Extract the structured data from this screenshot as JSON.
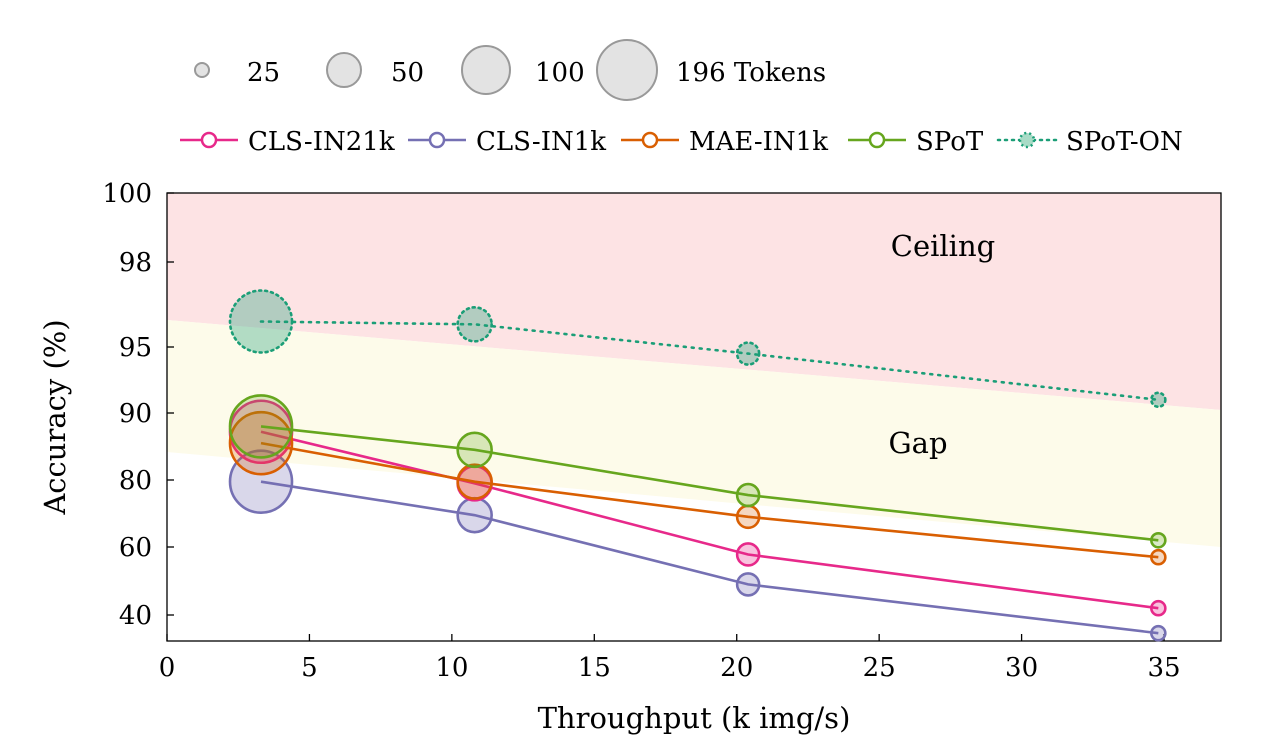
{
  "chart_data": {
    "type": "scatter",
    "xlabel": "Throughput (k img/s)",
    "ylabel": "Accuracy (%)",
    "xlim": [
      0,
      37
    ],
    "x_ticks": [
      0,
      5,
      10,
      15,
      20,
      25,
      30,
      35
    ],
    "y_ticks": [
      40,
      60,
      80,
      90,
      95,
      98,
      100
    ],
    "size_legend": {
      "entries": [
        {
          "tokens": 25,
          "label": "25"
        },
        {
          "tokens": 50,
          "label": "50"
        },
        {
          "tokens": 100,
          "label": "100"
        },
        {
          "tokens": 196,
          "label": "196 Tokens"
        }
      ]
    },
    "regions": [
      {
        "name": "Ceiling",
        "label": "Ceiling",
        "color": "#fde3e4",
        "text_color": "#f3a5a9"
      },
      {
        "name": "Gap",
        "label": "Gap",
        "color": "#fdfbea",
        "text_color": "#f5b676"
      }
    ],
    "series": [
      {
        "name": "CLS-IN21k",
        "color": "#e7298a",
        "style": "solid",
        "points": [
          {
            "x": 3.3,
            "y": 87.2,
            "tokens": 196
          },
          {
            "x": 10.8,
            "y": 79.0,
            "tokens": 100
          },
          {
            "x": 20.4,
            "y": 57.8,
            "tokens": 50
          },
          {
            "x": 34.8,
            "y": 42.0,
            "tokens": 25
          }
        ]
      },
      {
        "name": "CLS-IN1k",
        "color": "#7570b3",
        "style": "solid",
        "points": [
          {
            "x": 3.3,
            "y": 79.5,
            "tokens": 196
          },
          {
            "x": 10.8,
            "y": 69.5,
            "tokens": 100
          },
          {
            "x": 20.4,
            "y": 49.0,
            "tokens": 50
          },
          {
            "x": 34.8,
            "y": 36.5,
            "tokens": 25
          }
        ]
      },
      {
        "name": "MAE-IN1k",
        "color": "#d95f02",
        "style": "solid",
        "points": [
          {
            "x": 3.3,
            "y": 85.5,
            "tokens": 196
          },
          {
            "x": 10.8,
            "y": 79.5,
            "tokens": 100
          },
          {
            "x": 20.4,
            "y": 69.0,
            "tokens": 50
          },
          {
            "x": 34.8,
            "y": 57.0,
            "tokens": 25
          }
        ]
      },
      {
        "name": "SPoT",
        "color": "#66a61e",
        "style": "solid",
        "points": [
          {
            "x": 3.3,
            "y": 88.0,
            "tokens": 196
          },
          {
            "x": 10.8,
            "y": 84.5,
            "tokens": 100
          },
          {
            "x": 20.4,
            "y": 75.5,
            "tokens": 50
          },
          {
            "x": 34.8,
            "y": 62.0,
            "tokens": 25
          }
        ]
      },
      {
        "name": "SPoT-ON",
        "color": "#1b9e77",
        "style": "dotted",
        "points": [
          {
            "x": 3.3,
            "y": 95.9,
            "tokens": 196
          },
          {
            "x": 10.8,
            "y": 95.8,
            "tokens": 100
          },
          {
            "x": 20.4,
            "y": 94.5,
            "tokens": 50
          },
          {
            "x": 34.8,
            "y": 91.0,
            "tokens": 25
          }
        ]
      }
    ]
  }
}
